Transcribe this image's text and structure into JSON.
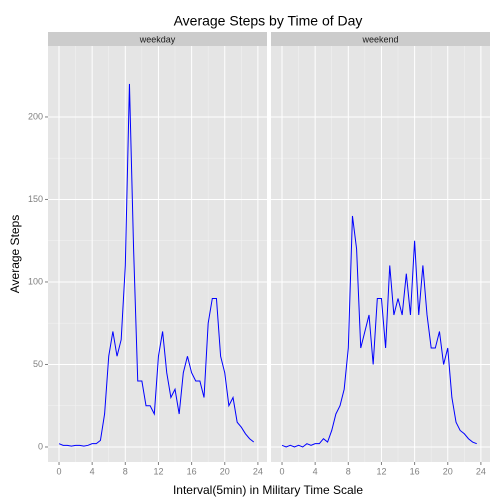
{
  "title": "Average Steps by Time of Day",
  "xlabel": "Interval(5min) in Military Time Scale",
  "ylabel": "Average Steps",
  "chart_data": [
    {
      "type": "line",
      "panel": "weekday",
      "color": "#0000ff",
      "x": [
        0,
        0.5,
        1,
        1.5,
        2,
        2.5,
        3,
        3.5,
        4,
        4.5,
        5,
        5.5,
        6,
        6.5,
        7,
        7.5,
        8,
        8.5,
        9,
        9.5,
        10,
        10.5,
        11,
        11.5,
        12,
        12.5,
        13,
        13.5,
        14,
        14.5,
        15,
        15.5,
        16,
        16.5,
        17,
        17.5,
        18,
        18.5,
        19,
        19.5,
        20,
        20.5,
        21,
        21.5,
        22,
        22.5,
        23,
        23.5
      ],
      "values": [
        2,
        1,
        1,
        0.5,
        1,
        1,
        0.5,
        1,
        2,
        2,
        4,
        20,
        55,
        70,
        55,
        65,
        110,
        220,
        120,
        40,
        40,
        25,
        25,
        20,
        55,
        70,
        45,
        30,
        35,
        20,
        45,
        55,
        45,
        40,
        40,
        30,
        75,
        90,
        90,
        55,
        45,
        25,
        30,
        15,
        12,
        8,
        5,
        3
      ],
      "xlim": [
        -1.33,
        25.1
      ],
      "xticks": [
        0,
        4,
        8,
        12,
        16,
        20,
        24
      ],
      "ylim": [
        -9.1,
        243
      ],
      "yticks": [
        0,
        50,
        100,
        150,
        200
      ],
      "grid": true
    },
    {
      "type": "line",
      "panel": "weekend",
      "color": "#0000ff",
      "x": [
        0,
        0.5,
        1,
        1.5,
        2,
        2.5,
        3,
        3.5,
        4,
        4.5,
        5,
        5.5,
        6,
        6.5,
        7,
        7.5,
        8,
        8.5,
        9,
        9.5,
        10,
        10.5,
        11,
        11.5,
        12,
        12.5,
        13,
        13.5,
        14,
        14.5,
        15,
        15.5,
        16,
        16.5,
        17,
        17.5,
        18,
        18.5,
        19,
        19.5,
        20,
        20.5,
        21,
        21.5,
        22,
        22.5,
        23,
        23.5
      ],
      "values": [
        1,
        0,
        1,
        0,
        1,
        0,
        2,
        1,
        2,
        2,
        5,
        3,
        10,
        20,
        25,
        35,
        60,
        140,
        120,
        60,
        70,
        80,
        50,
        90,
        90,
        60,
        110,
        80,
        90,
        80,
        105,
        80,
        125,
        80,
        110,
        80,
        60,
        60,
        70,
        50,
        60,
        30,
        15,
        10,
        8,
        5,
        3,
        2
      ],
      "xlim": [
        -1.33,
        25.1
      ],
      "xticks": [
        0,
        4,
        8,
        12,
        16,
        20,
        24
      ],
      "ylim": [
        -9.1,
        243
      ],
      "yticks": [
        0,
        50,
        100,
        150,
        200
      ],
      "grid": true
    }
  ]
}
